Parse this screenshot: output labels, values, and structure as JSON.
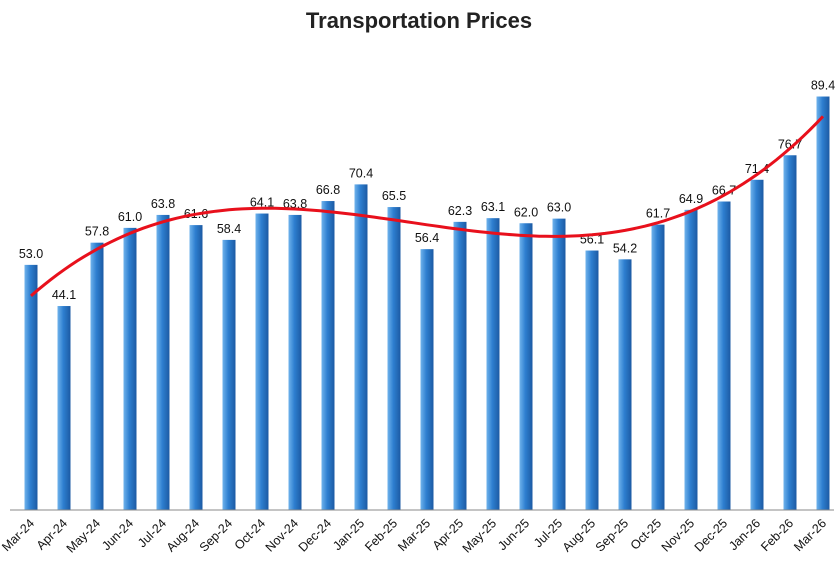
{
  "chart_data": {
    "type": "bar",
    "title": "Transportation Prices",
    "xlabel": "",
    "ylabel": "",
    "categories": [
      "Mar-24",
      "Apr-24",
      "May-24",
      "Jun-24",
      "Jul-24",
      "Aug-24",
      "Sep-24",
      "Oct-24",
      "Nov-24",
      "Dec-24",
      "Jan-25",
      "Feb-25",
      "Mar-25",
      "Apr-25",
      "May-25",
      "Jun-25",
      "Jul-25",
      "Aug-25",
      "Sep-25",
      "Oct-25",
      "Nov-25",
      "Dec-25",
      "Jan-26",
      "Feb-26",
      "Mar-26"
    ],
    "values": [
      53.0,
      44.1,
      57.8,
      61.0,
      63.8,
      61.6,
      58.4,
      64.1,
      63.8,
      66.8,
      70.4,
      65.5,
      56.4,
      62.3,
      63.1,
      62.0,
      63.0,
      56.1,
      54.2,
      61.7,
      64.9,
      66.7,
      71.4,
      76.7,
      89.4
    ],
    "value_labels": [
      "53.0",
      "44.1",
      "57.8",
      "61.0",
      "63.8",
      "61.6",
      "58.4",
      "64.1",
      "63.8",
      "66.8",
      "70.4",
      "65.5",
      "56.4",
      "62.3",
      "63.1",
      "62.0",
      "63.0",
      "56.1",
      "54.2",
      "61.7",
      "64.9",
      "66.7",
      "71.4",
      "76.7",
      "89.4"
    ],
    "ylim": [
      0,
      96
    ],
    "grid": false,
    "legend": "none",
    "trendline": {
      "type": "polynomial",
      "color": "#e8101c"
    },
    "colors": {
      "bar_fill": "#2e7fd0",
      "bar_light": "#6fb3ec",
      "bar_dark": "#1c5aa3",
      "axis": "#888888"
    }
  }
}
